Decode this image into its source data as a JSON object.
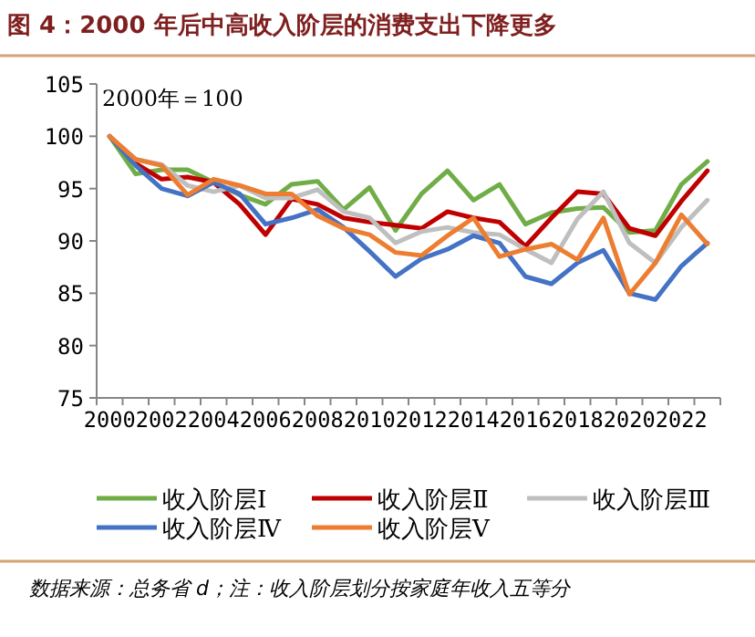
{
  "chart_data": {
    "type": "line",
    "title": "图 4：2000 年后中高收入阶层的消费支出下降更多",
    "categories": [
      "2000",
      null,
      "2002",
      null,
      "2004",
      null,
      "2006",
      null,
      "2008",
      null,
      "2010",
      null,
      "2012",
      null,
      "2014",
      null,
      "2016",
      null,
      "2018",
      null,
      "2020",
      null,
      "2022",
      null
    ],
    "series": [
      {
        "name": "收入阶层Ⅰ",
        "color": "#70ad47",
        "values": [
          100,
          96.4,
          96.8,
          96.8,
          95.6,
          94.4,
          93.5,
          95.4,
          95.7,
          93.0,
          95.1,
          91.0,
          94.5,
          96.7,
          93.9,
          95.4,
          91.6,
          92.7,
          93.1,
          93.2,
          90.8,
          91.0,
          95.4,
          97.6
        ]
      },
      {
        "name": "收入阶层Ⅱ",
        "color": "#c00000",
        "values": [
          100,
          97.4,
          95.9,
          96.1,
          95.6,
          93.5,
          90.6,
          94.0,
          93.5,
          92.2,
          91.8,
          91.5,
          91.2,
          92.8,
          92.2,
          91.8,
          89.5,
          92.2,
          94.7,
          94.5,
          91.2,
          90.5,
          93.8,
          96.7
        ]
      },
      {
        "name": "收入阶层Ⅲ",
        "color": "#bfbfbf",
        "values": [
          100,
          97.8,
          97.3,
          95.3,
          94.7,
          95.3,
          94.1,
          94.1,
          94.9,
          92.8,
          92.2,
          89.8,
          90.9,
          91.3,
          90.8,
          90.6,
          89.2,
          87.9,
          92.1,
          94.7,
          89.8,
          87.9,
          91.3,
          93.9
        ]
      },
      {
        "name": "收入阶层Ⅳ",
        "color": "#4472c4",
        "values": [
          100,
          97.2,
          95.0,
          94.3,
          95.6,
          94.5,
          91.6,
          92.2,
          93.0,
          91.3,
          89.0,
          86.6,
          88.3,
          89.2,
          90.5,
          89.8,
          86.6,
          85.9,
          87.9,
          89.1,
          85.0,
          84.4,
          87.6,
          89.8
        ]
      },
      {
        "name": "收入阶层Ⅴ",
        "color": "#ed7d31",
        "values": [
          100,
          97.8,
          97.2,
          94.4,
          95.9,
          95.3,
          94.5,
          94.5,
          92.4,
          91.2,
          90.6,
          88.9,
          88.6,
          90.5,
          92.2,
          88.5,
          89.2,
          89.7,
          88.2,
          92.2,
          84.9,
          87.9,
          92.5,
          89.7
        ]
      }
    ],
    "ylim": [
      75,
      105
    ],
    "yticks": [
      75,
      80,
      85,
      90,
      95,
      100,
      105
    ],
    "legend": "bottom",
    "grid": false,
    "marker": "none",
    "line_style": "solid",
    "annotations": [
      "2000年＝100",
      "数据来源：总务省 d；注：收入阶层划分按家庭年收入五等分"
    ]
  }
}
